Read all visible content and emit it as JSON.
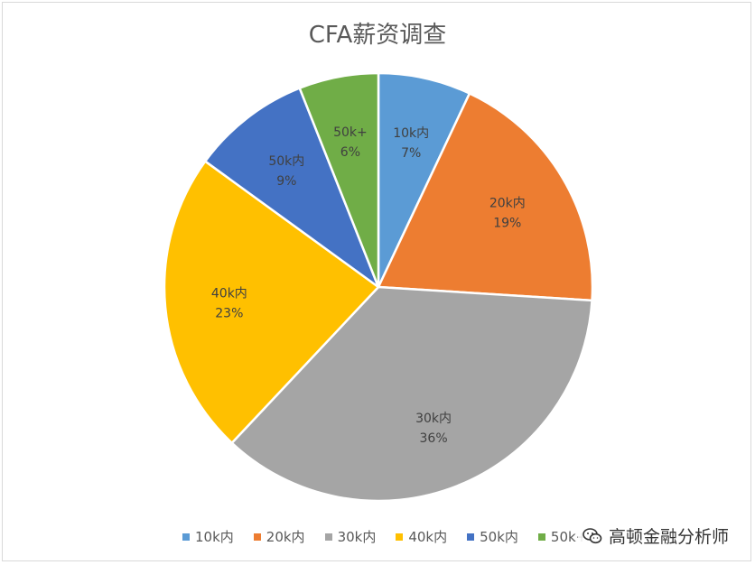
{
  "chart_data": {
    "type": "pie",
    "title": "CFA薪资调查",
    "categories": [
      "10k内",
      "20k内",
      "30k内",
      "40k内",
      "50k内",
      "50k+"
    ],
    "values": [
      7,
      19,
      36,
      23,
      9,
      6
    ],
    "value_labels": [
      "7%",
      "19%",
      "36%",
      "23%",
      "9%",
      "6%"
    ],
    "colors": [
      "#5b9bd5",
      "#ed7d31",
      "#a5a5a5",
      "#ffc000",
      "#4472c4",
      "#70ad47"
    ],
    "legend_position": "bottom",
    "start": "12 o'clock, clockwise"
  },
  "legend": {
    "items": [
      {
        "label": "10k内",
        "color": "#5b9bd5"
      },
      {
        "label": "20k内",
        "color": "#ed7d31"
      },
      {
        "label": "30k内",
        "color": "#a5a5a5"
      },
      {
        "label": "40k内",
        "color": "#ffc000"
      },
      {
        "label": "50k内",
        "color": "#4472c4"
      },
      {
        "label": "50k+",
        "color": "#70ad47"
      }
    ]
  },
  "watermark": {
    "text": "高顿金融分析师",
    "icon": "wechat-icon"
  }
}
